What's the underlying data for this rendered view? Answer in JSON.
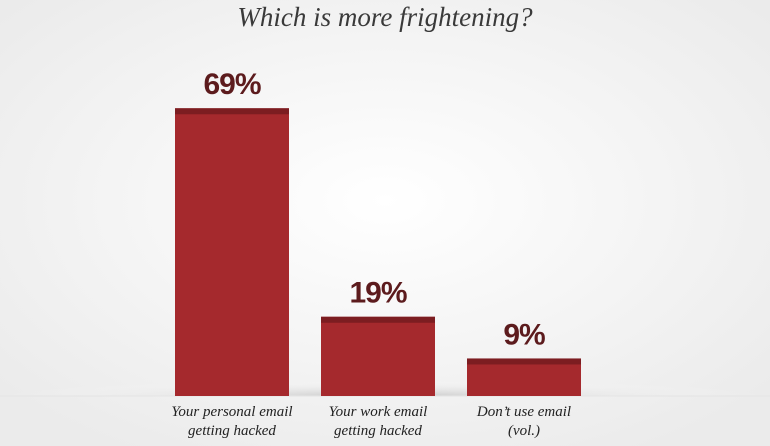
{
  "chart_data": {
    "type": "bar",
    "title": "Which is more frightening?",
    "categories": [
      "Your personal email\ngetting hacked",
      "Your work email\ngetting hacked",
      "Don’t use email\n(vol.)"
    ],
    "values": [
      69,
      19,
      9
    ],
    "value_labels": [
      "69%",
      "19%",
      "9%"
    ],
    "color": "#a5292d"
  }
}
